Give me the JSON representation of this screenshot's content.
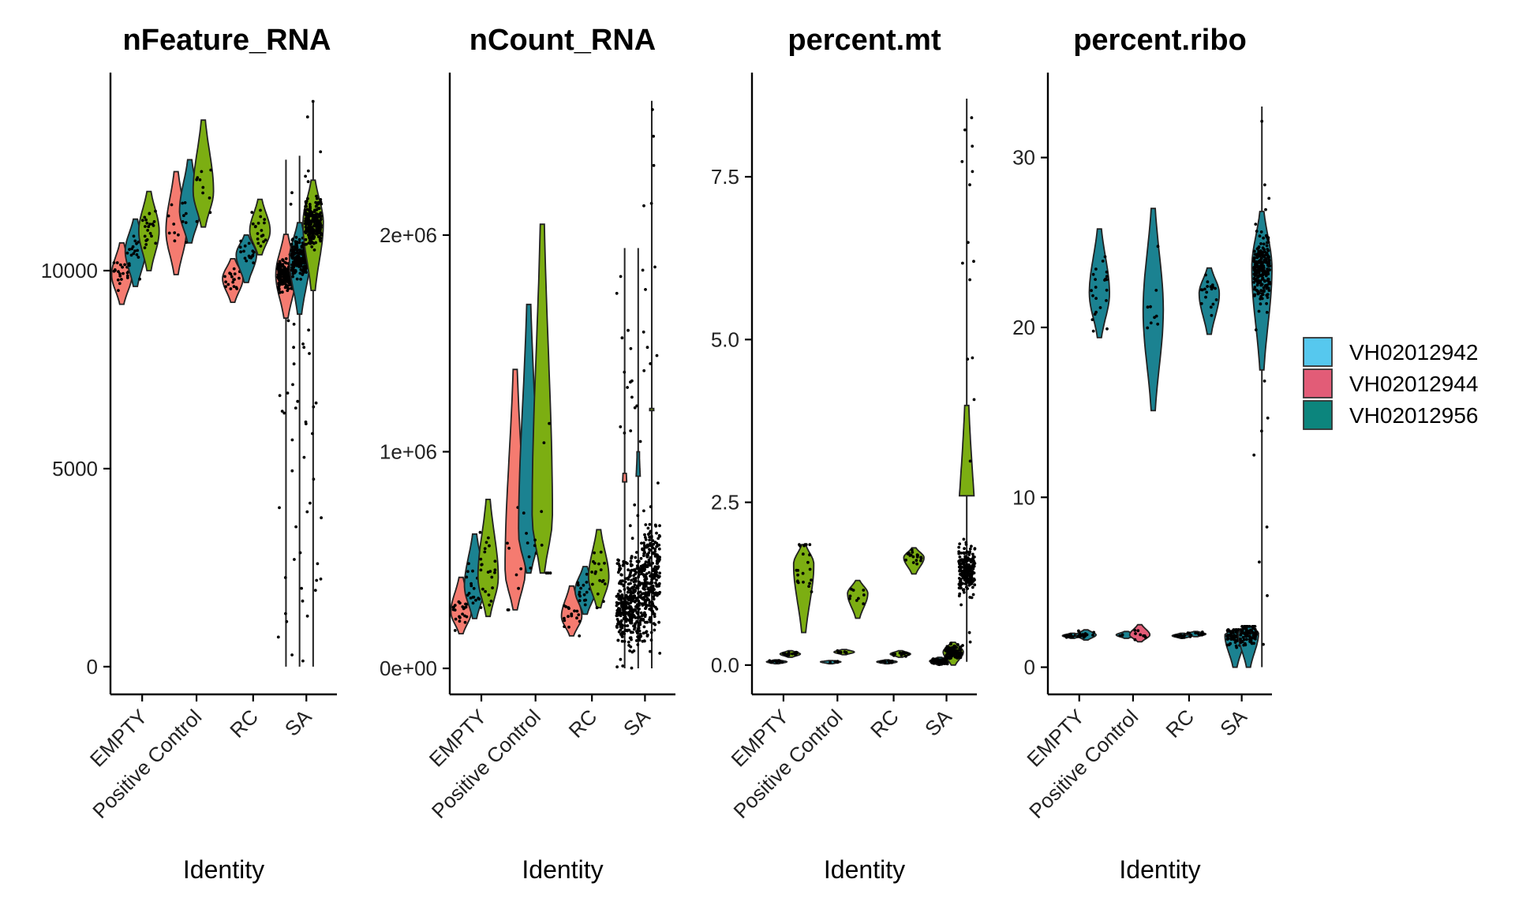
{
  "colors": {
    "legend": [
      "#56C8EE",
      "#E25C77",
      "#0C857D"
    ],
    "g1": "#F57B70",
    "g2": "#1B8291",
    "g3": "#7CAE12"
  },
  "legend": {
    "items": [
      {
        "label": "VH02012942",
        "color": "#56C8EE"
      },
      {
        "label": "VH02012944",
        "color": "#E25C77"
      },
      {
        "label": "VH02012956",
        "color": "#0C857D"
      }
    ]
  },
  "chart_data": [
    {
      "type": "violin",
      "title": "nFeature_RNA",
      "xlabel": "Identity",
      "categories": [
        "EMPTY",
        "Positive Control",
        "RC",
        "SA"
      ],
      "ylim": [
        -700,
        15000
      ],
      "yticks": [
        {
          "value": 0,
          "label": "0"
        },
        {
          "value": 5000,
          "label": "5000"
        },
        {
          "value": 10000,
          "label": "10000"
        }
      ],
      "violins": [
        {
          "cat": 0,
          "slot": 0,
          "color": "g1",
          "min": 9150,
          "max": 10700,
          "mid": 9900,
          "n": 22
        },
        {
          "cat": 0,
          "slot": 1,
          "color": "g2",
          "min": 9600,
          "max": 11300,
          "mid": 10500,
          "n": 20
        },
        {
          "cat": 0,
          "slot": 2,
          "color": "g3",
          "min": 10000,
          "max": 12000,
          "mid": 11000,
          "n": 22
        },
        {
          "cat": 1,
          "slot": 0,
          "color": "g1",
          "min": 9900,
          "max": 12500,
          "mid": 11000,
          "n": 8
        },
        {
          "cat": 1,
          "slot": 1,
          "color": "g2",
          "min": 10700,
          "max": 12800,
          "mid": 11500,
          "n": 8
        },
        {
          "cat": 1,
          "slot": 2,
          "color": "g3",
          "min": 11100,
          "max": 13800,
          "mid": 12000,
          "n": 9
        },
        {
          "cat": 2,
          "slot": 0,
          "color": "g1",
          "min": 9200,
          "max": 10300,
          "mid": 9800,
          "n": 18
        },
        {
          "cat": 2,
          "slot": 1,
          "color": "g2",
          "min": 9700,
          "max": 10900,
          "mid": 10400,
          "n": 18
        },
        {
          "cat": 2,
          "slot": 2,
          "color": "g3",
          "min": 10400,
          "max": 11800,
          "mid": 11000,
          "n": 18
        },
        {
          "cat": 3,
          "slot": 0,
          "color": "g1",
          "min": 0,
          "max": 12800,
          "mid": 9900,
          "n": 220,
          "tail": 8800
        },
        {
          "cat": 3,
          "slot": 1,
          "color": "g2",
          "min": 0,
          "max": 12900,
          "mid": 10300,
          "n": 220,
          "tail": 8900
        },
        {
          "cat": 3,
          "slot": 2,
          "color": "g3",
          "min": 0,
          "max": 14300,
          "mid": 11200,
          "n": 240,
          "tail": 9500
        }
      ]
    },
    {
      "type": "violin",
      "title": "nCount_RNA",
      "xlabel": "Identity",
      "categories": [
        "EMPTY",
        "Positive Control",
        "RC",
        "SA"
      ],
      "ylim": [
        -120000,
        2750000
      ],
      "yticks": [
        {
          "value": 0,
          "label": "0e+00"
        },
        {
          "value": 1000000,
          "label": "1e+06"
        },
        {
          "value": 2000000,
          "label": "2e+06"
        }
      ],
      "violins": [
        {
          "cat": 0,
          "slot": 0,
          "color": "g1",
          "min": 160000,
          "max": 420000,
          "mid": 260000,
          "n": 22
        },
        {
          "cat": 0,
          "slot": 1,
          "color": "g2",
          "min": 230000,
          "max": 620000,
          "mid": 380000,
          "n": 20
        },
        {
          "cat": 0,
          "slot": 2,
          "color": "g3",
          "min": 240000,
          "max": 780000,
          "mid": 420000,
          "n": 22
        },
        {
          "cat": 1,
          "slot": 0,
          "color": "g1",
          "min": 270000,
          "max": 1380000,
          "mid": 450000,
          "n": 8
        },
        {
          "cat": 1,
          "slot": 1,
          "color": "g2",
          "min": 440000,
          "max": 1680000,
          "mid": 620000,
          "n": 8
        },
        {
          "cat": 1,
          "slot": 2,
          "color": "g3",
          "min": 440000,
          "max": 2050000,
          "mid": 700000,
          "n": 9
        },
        {
          "cat": 2,
          "slot": 0,
          "color": "g1",
          "min": 150000,
          "max": 380000,
          "mid": 240000,
          "n": 18
        },
        {
          "cat": 2,
          "slot": 1,
          "color": "g2",
          "min": 250000,
          "max": 470000,
          "mid": 360000,
          "n": 18
        },
        {
          "cat": 2,
          "slot": 2,
          "color": "g3",
          "min": 280000,
          "max": 640000,
          "mid": 420000,
          "n": 18
        },
        {
          "cat": 3,
          "slot": 0,
          "color": "g1",
          "min": 0,
          "max": 1940000,
          "mid": 280000,
          "n": 220,
          "tail": 900000
        },
        {
          "cat": 3,
          "slot": 1,
          "color": "g2",
          "min": 0,
          "max": 1940000,
          "mid": 320000,
          "n": 220,
          "tail": 1000000
        },
        {
          "cat": 3,
          "slot": 2,
          "color": "g3",
          "min": 0,
          "max": 2620000,
          "mid": 420000,
          "n": 240,
          "tail": 1200000
        }
      ]
    },
    {
      "type": "violin",
      "title": "percent.mt",
      "xlabel": "Identity",
      "categories": [
        "EMPTY",
        "Positive Control",
        "RC",
        "SA"
      ],
      "ylim": [
        -0.45,
        9.1
      ],
      "yticks": [
        {
          "value": 0,
          "label": "0.0"
        },
        {
          "value": 2.5,
          "label": "2.5"
        },
        {
          "value": 5,
          "label": "5.0"
        },
        {
          "value": 7.5,
          "label": "7.5"
        }
      ],
      "violins": [
        {
          "cat": 0,
          "slot": 1,
          "color": "g2",
          "min": 0.02,
          "max": 0.08,
          "mid": 0.05,
          "n": 14
        },
        {
          "cat": 0,
          "slot": 2,
          "color": "g3",
          "min": 0.12,
          "max": 0.22,
          "mid": 0.17,
          "n": 16
        },
        {
          "cat": 0,
          "slot": 3,
          "color": "g3",
          "min": 0.5,
          "max": 1.85,
          "mid": 1.55,
          "n": 22
        },
        {
          "cat": 1,
          "slot": 1,
          "color": "g2",
          "min": 0.02,
          "max": 0.07,
          "mid": 0.05,
          "n": 6
        },
        {
          "cat": 1,
          "slot": 2,
          "color": "g3",
          "min": 0.16,
          "max": 0.24,
          "mid": 0.2,
          "n": 8
        },
        {
          "cat": 1,
          "slot": 3,
          "color": "g3",
          "min": 0.72,
          "max": 1.3,
          "mid": 1.1,
          "n": 9
        },
        {
          "cat": 2,
          "slot": 1,
          "color": "g2",
          "min": 0.02,
          "max": 0.08,
          "mid": 0.05,
          "n": 14
        },
        {
          "cat": 2,
          "slot": 2,
          "color": "g3",
          "min": 0.12,
          "max": 0.22,
          "mid": 0.17,
          "n": 14
        },
        {
          "cat": 2,
          "slot": 3,
          "color": "g3",
          "min": 1.4,
          "max": 1.8,
          "mid": 1.65,
          "n": 18
        },
        {
          "cat": 3,
          "slot": 1,
          "color": "g2",
          "min": 0.0,
          "max": 0.12,
          "mid": 0.06,
          "n": 80
        },
        {
          "cat": 3,
          "slot": 2,
          "color": "g3",
          "min": 0.0,
          "max": 0.35,
          "mid": 0.2,
          "n": 90
        },
        {
          "cat": 3,
          "slot": 3,
          "color": "g3",
          "min": 0.05,
          "max": 8.7,
          "mid": 1.45,
          "n": 230,
          "tail": 2.6
        }
      ]
    },
    {
      "type": "violin",
      "title": "percent.ribo",
      "xlabel": "Identity",
      "categories": [
        "EMPTY",
        "Positive Control",
        "RC",
        "SA"
      ],
      "ylim": [
        -1.6,
        35.0
      ],
      "yticks": [
        {
          "value": 0,
          "label": "0"
        },
        {
          "value": 10,
          "label": "10"
        },
        {
          "value": 20,
          "label": "20"
        },
        {
          "value": 30,
          "label": "30"
        }
      ],
      "violins": [
        {
          "cat": 0,
          "slot": 1,
          "color": "g2",
          "min": 1.7,
          "max": 2.0,
          "mid": 1.85,
          "n": 18
        },
        {
          "cat": 0,
          "slot": 2,
          "color": "g2",
          "min": 1.6,
          "max": 2.2,
          "mid": 1.9,
          "n": 18
        },
        {
          "cat": 0,
          "slot": 3,
          "color": "g2",
          "min": 19.4,
          "max": 25.8,
          "mid": 22.0,
          "n": 22
        },
        {
          "cat": 1,
          "slot": 1,
          "color": "g2",
          "min": 1.7,
          "max": 2.1,
          "mid": 1.9,
          "n": 6
        },
        {
          "cat": 1,
          "slot": 2,
          "color": "pink",
          "min": 1.5,
          "max": 2.5,
          "mid": 1.9,
          "n": 8
        },
        {
          "cat": 1,
          "slot": 3,
          "color": "g2",
          "min": 15.1,
          "max": 27.0,
          "mid": 21.0,
          "n": 9
        },
        {
          "cat": 2,
          "slot": 1,
          "color": "g2",
          "min": 1.7,
          "max": 2.0,
          "mid": 1.85,
          "n": 14
        },
        {
          "cat": 2,
          "slot": 2,
          "color": "g2",
          "min": 1.8,
          "max": 2.1,
          "mid": 1.95,
          "n": 14
        },
        {
          "cat": 2,
          "slot": 3,
          "color": "g2",
          "min": 19.6,
          "max": 23.5,
          "mid": 22.0,
          "n": 18
        },
        {
          "cat": 3,
          "slot": 1,
          "color": "g2",
          "min": 0.0,
          "max": 2.2,
          "mid": 1.9,
          "n": 80
        },
        {
          "cat": 3,
          "slot": 2,
          "color": "g2",
          "min": 0.0,
          "max": 2.4,
          "mid": 2.0,
          "n": 90
        },
        {
          "cat": 3,
          "slot": 3,
          "color": "g2",
          "min": 0.0,
          "max": 33.0,
          "mid": 23.5,
          "n": 230,
          "tail": 17.5
        }
      ]
    }
  ]
}
